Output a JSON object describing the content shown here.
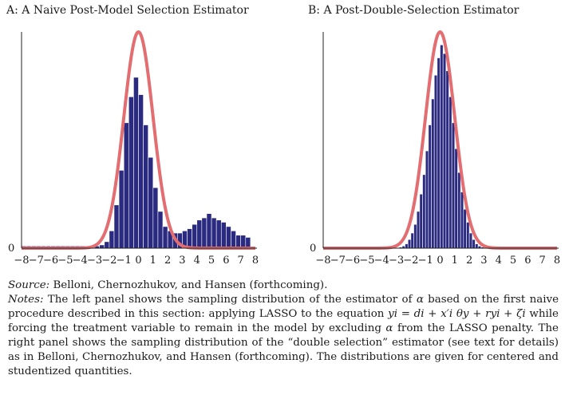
{
  "chart_data": [
    {
      "type": "histogram",
      "title": "A: A Naive Post-Model Selection Estimator",
      "x_ticks": [
        -8,
        -7,
        -6,
        -5,
        -4,
        -3,
        -2,
        -1,
        0,
        1,
        2,
        3,
        4,
        5,
        6,
        7,
        8
      ],
      "y_tick_label": "0",
      "xlim": [
        -8,
        8
      ],
      "bin_width": 0.333,
      "bins": [
        {
          "x0": -8.0,
          "count": 0.01
        },
        {
          "x0": -7.667,
          "count": 0.01
        },
        {
          "x0": -7.333,
          "count": 0.01
        },
        {
          "x0": -7.0,
          "count": 0.01
        },
        {
          "x0": -6.667,
          "count": 0.01
        },
        {
          "x0": -6.333,
          "count": 0.01
        },
        {
          "x0": -6.0,
          "count": 0.01
        },
        {
          "x0": -5.667,
          "count": 0.01
        },
        {
          "x0": -5.333,
          "count": 0.01
        },
        {
          "x0": -5.0,
          "count": 0.01
        },
        {
          "x0": -4.667,
          "count": 0.01
        },
        {
          "x0": -4.333,
          "count": 0.01
        },
        {
          "x0": -4.0,
          "count": 0.01
        },
        {
          "x0": -3.667,
          "count": 0.01
        },
        {
          "x0": -3.333,
          "count": 0.01
        },
        {
          "x0": -3.0,
          "count": 0.01
        },
        {
          "x0": -2.667,
          "count": 0.015
        },
        {
          "x0": -2.333,
          "count": 0.03
        },
        {
          "x0": -2.0,
          "count": 0.08
        },
        {
          "x0": -1.667,
          "count": 0.2
        },
        {
          "x0": -1.333,
          "count": 0.36
        },
        {
          "x0": -1.0,
          "count": 0.58
        },
        {
          "x0": -0.667,
          "count": 0.7
        },
        {
          "x0": -0.333,
          "count": 0.79
        },
        {
          "x0": 0.0,
          "count": 0.71
        },
        {
          "x0": 0.333,
          "count": 0.57
        },
        {
          "x0": 0.667,
          "count": 0.42
        },
        {
          "x0": 1.0,
          "count": 0.28
        },
        {
          "x0": 1.333,
          "count": 0.17
        },
        {
          "x0": 1.667,
          "count": 0.1
        },
        {
          "x0": 2.0,
          "count": 0.08
        },
        {
          "x0": 2.333,
          "count": 0.07
        },
        {
          "x0": 2.667,
          "count": 0.07
        },
        {
          "x0": 3.0,
          "count": 0.08
        },
        {
          "x0": 3.333,
          "count": 0.09
        },
        {
          "x0": 3.667,
          "count": 0.11
        },
        {
          "x0": 4.0,
          "count": 0.13
        },
        {
          "x0": 4.333,
          "count": 0.14
        },
        {
          "x0": 4.667,
          "count": 0.16
        },
        {
          "x0": 5.0,
          "count": 0.14
        },
        {
          "x0": 5.333,
          "count": 0.13
        },
        {
          "x0": 5.667,
          "count": 0.12
        },
        {
          "x0": 6.0,
          "count": 0.1
        },
        {
          "x0": 6.333,
          "count": 0.08
        },
        {
          "x0": 6.667,
          "count": 0.06
        },
        {
          "x0": 7.0,
          "count": 0.06
        },
        {
          "x0": 7.333,
          "count": 0.05
        }
      ],
      "curve": {
        "type": "normal_density",
        "mean": 0,
        "sd": 1
      },
      "colors": {
        "bars": "#2a2a80",
        "bar_edge": "#ffffff",
        "curve": "#e36e72",
        "axis": "#222222"
      }
    },
    {
      "type": "histogram",
      "title": "B: A Post-Double-Selection Estimator",
      "x_ticks": [
        -8,
        -7,
        -6,
        -5,
        -4,
        -3,
        -2,
        -1,
        0,
        1,
        2,
        3,
        4,
        5,
        6,
        7,
        8
      ],
      "y_tick_label": "0",
      "xlim": [
        -8,
        8
      ],
      "bin_width": 0.2,
      "bins": [
        {
          "x0": -3.0,
          "count": 0.003
        },
        {
          "x0": -2.8,
          "count": 0.005
        },
        {
          "x0": -2.6,
          "count": 0.01
        },
        {
          "x0": -2.4,
          "count": 0.02
        },
        {
          "x0": -2.2,
          "count": 0.04
        },
        {
          "x0": -2.0,
          "count": 0.07
        },
        {
          "x0": -1.8,
          "count": 0.11
        },
        {
          "x0": -1.6,
          "count": 0.17
        },
        {
          "x0": -1.4,
          "count": 0.25
        },
        {
          "x0": -1.2,
          "count": 0.34
        },
        {
          "x0": -1.0,
          "count": 0.45
        },
        {
          "x0": -0.8,
          "count": 0.57
        },
        {
          "x0": -0.6,
          "count": 0.69
        },
        {
          "x0": -0.4,
          "count": 0.8
        },
        {
          "x0": -0.2,
          "count": 0.88
        },
        {
          "x0": 0.0,
          "count": 0.94
        },
        {
          "x0": 0.2,
          "count": 0.9
        },
        {
          "x0": 0.4,
          "count": 0.82
        },
        {
          "x0": 0.6,
          "count": 0.7
        },
        {
          "x0": 0.8,
          "count": 0.58
        },
        {
          "x0": 1.0,
          "count": 0.46
        },
        {
          "x0": 1.2,
          "count": 0.35
        },
        {
          "x0": 1.4,
          "count": 0.26
        },
        {
          "x0": 1.6,
          "count": 0.18
        },
        {
          "x0": 1.8,
          "count": 0.12
        },
        {
          "x0": 2.0,
          "count": 0.07
        },
        {
          "x0": 2.2,
          "count": 0.04
        },
        {
          "x0": 2.4,
          "count": 0.02
        },
        {
          "x0": 2.6,
          "count": 0.01
        },
        {
          "x0": 2.8,
          "count": 0.005
        }
      ],
      "curve": {
        "type": "normal_density",
        "mean": 0,
        "sd": 1
      },
      "colors": {
        "bars": "#2a2a80",
        "bar_edge": "#ffffff",
        "curve": "#e36e72",
        "axis": "#222222"
      }
    }
  ],
  "caption": {
    "source_label": "Source:",
    "source_text": " Belloni, Chernozhukov, and Hansen (forthcoming).",
    "notes_label": "Notes:",
    "notes_text_1": " The left panel shows the sampling distribution of the estimator of ",
    "alpha_1": "α",
    "notes_text_2": " based on the first naive procedure described in this section: applying LASSO to the equation ",
    "equation": "yi = di + x′i θy + ryi + ζi",
    "notes_text_3": " while forcing the treatment variable to remain in the model by excluding ",
    "alpha_2": "α",
    "notes_text_4": " from the LASSO penalty. The right panel shows the sampling distribution of the “double selection” estimator (see text for details) as in Belloni, Chernozhukov, and Hansen (forthcoming). The distributions are given for centered and studentized quantities."
  }
}
